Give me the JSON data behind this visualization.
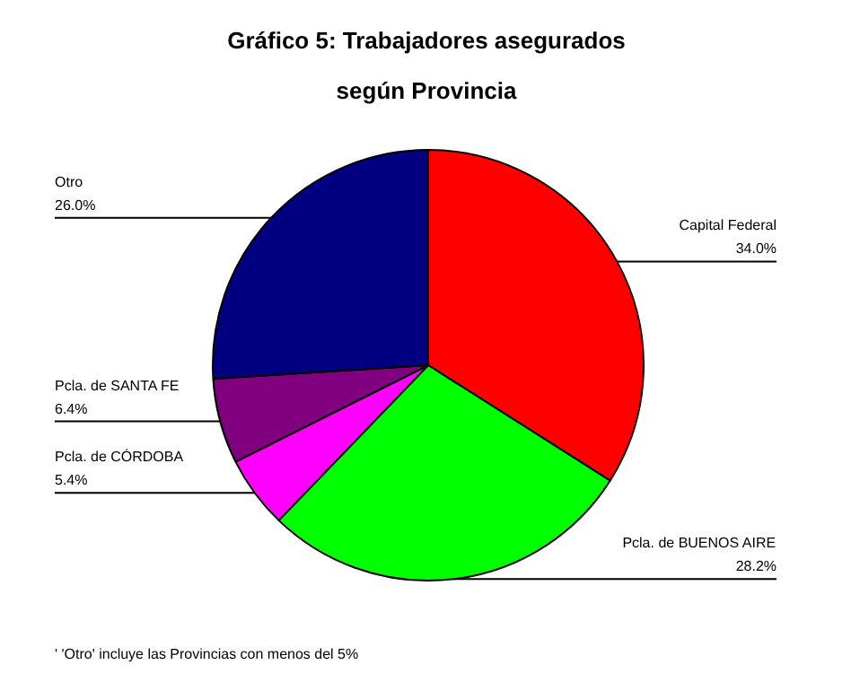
{
  "chart_data": {
    "type": "pie",
    "title": "Gráfico 5: Trabajadores asegurados\nsegún Provincia",
    "categories": [
      "Capital Federal",
      "Pcla. de BUENOS AIRE",
      "Pcla. de CÓRDOBA",
      "Pcla. de SANTA FE",
      "Otro"
    ],
    "values": [
      34.0,
      28.2,
      5.4,
      6.4,
      26.0
    ],
    "colors": [
      "#ff0000",
      "#00ff00",
      "#ff00ff",
      "#800080",
      "#000080"
    ],
    "value_labels": [
      "34.0%",
      "28.2%",
      "5.4%",
      "6.4%",
      "26.0%"
    ],
    "annotations": [
      "' 'Otro' incluye las Provincias con menos del 5%"
    ]
  }
}
